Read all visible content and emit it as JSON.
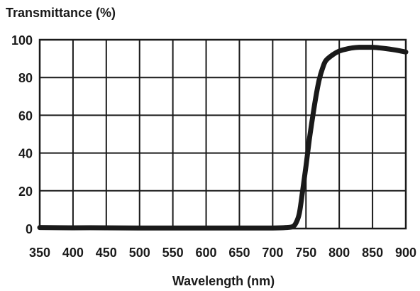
{
  "chart_data": {
    "type": "line",
    "title": "",
    "ylabel": "Transmittance (%)",
    "xlabel": "Wavelength (nm)",
    "xlim": [
      350,
      900
    ],
    "ylim": [
      0,
      100
    ],
    "x_ticks": [
      "350",
      "400",
      "450",
      "500",
      "550",
      "600",
      "650",
      "700",
      "750",
      "800",
      "850",
      "900"
    ],
    "y_ticks": [
      "0",
      "20",
      "40",
      "60",
      "80",
      "100"
    ],
    "grid": true,
    "series": [
      {
        "color": "#1a1a1a",
        "x": [
          350,
          400,
          450,
          500,
          550,
          600,
          650,
          700,
          720,
          730,
          735,
          740,
          745,
          750,
          755,
          760,
          765,
          770,
          775,
          780,
          790,
          800,
          810,
          820,
          830,
          840,
          850,
          860,
          870,
          880,
          890,
          900
        ],
        "y": [
          0.5,
          0.4,
          0.4,
          0.3,
          0.3,
          0.3,
          0.3,
          0.3,
          0.5,
          1,
          3,
          8,
          20,
          33,
          47,
          59,
          70,
          79,
          85,
          89,
          92,
          94,
          95,
          95.7,
          96,
          96,
          96,
          95.7,
          95.3,
          94.8,
          94.2,
          93.5
        ]
      }
    ]
  }
}
